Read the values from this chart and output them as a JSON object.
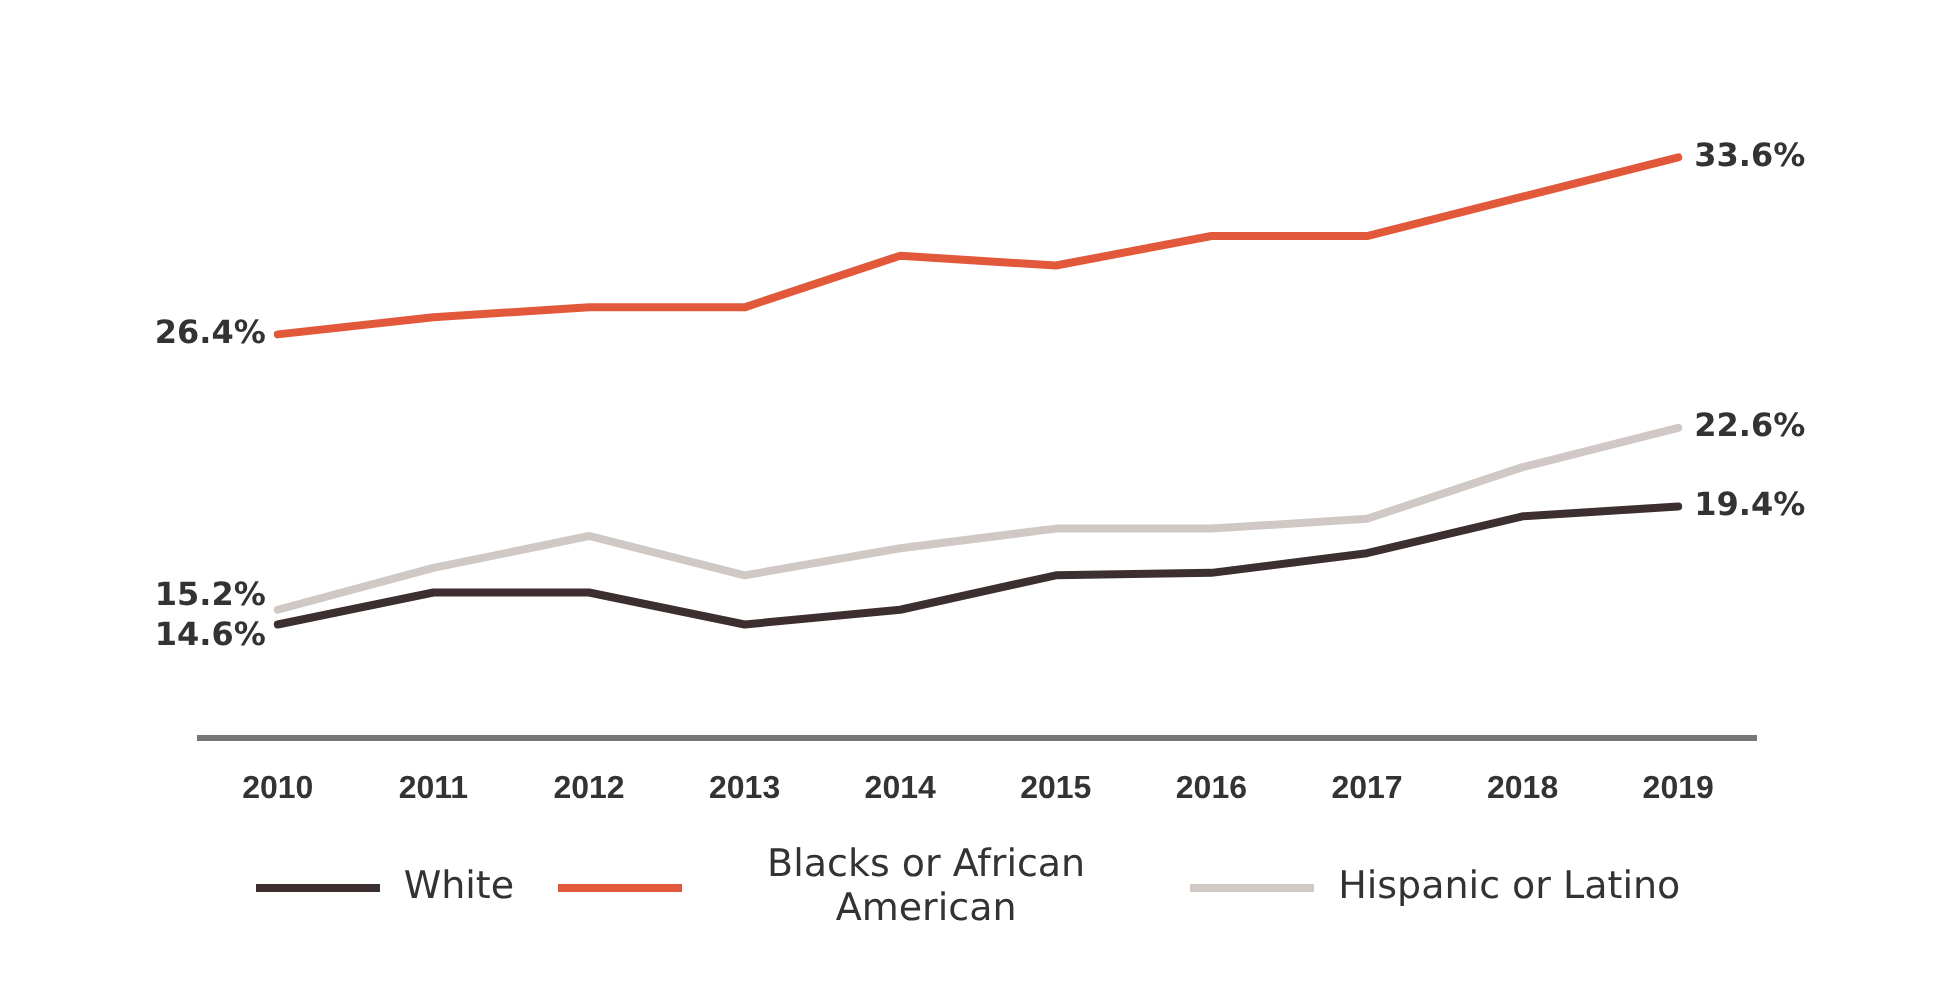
{
  "chart_data": {
    "type": "line",
    "categories": [
      "2010",
      "2011",
      "2012",
      "2013",
      "2014",
      "2015",
      "2016",
      "2017",
      "2018",
      "2019"
    ],
    "series": [
      {
        "name": "White",
        "color": "#3d2f2f",
        "values": [
          14.6,
          15.9,
          15.9,
          14.6,
          15.2,
          16.6,
          16.7,
          17.5,
          19.0,
          19.4
        ],
        "value_labels": [
          "14.6%",
          null,
          null,
          null,
          null,
          null,
          null,
          null,
          null,
          "19.4%"
        ]
      },
      {
        "name": "Blacks or African American",
        "color": "#e2583a",
        "values": [
          26.4,
          27.1,
          27.5,
          27.5,
          29.6,
          29.2,
          30.4,
          30.4,
          32.0,
          33.6
        ],
        "value_labels": [
          "26.4%",
          null,
          null,
          null,
          null,
          null,
          null,
          null,
          null,
          "33.6%"
        ]
      },
      {
        "name": "Hispanic or Latino",
        "color": "#cfc8c4",
        "values": [
          15.2,
          16.9,
          18.2,
          16.6,
          17.7,
          18.5,
          18.5,
          18.9,
          21.0,
          22.6
        ],
        "value_labels": [
          "15.2%",
          null,
          null,
          null,
          null,
          null,
          null,
          null,
          null,
          "22.6%"
        ]
      }
    ],
    "tick_labels": "x",
    "grid": false,
    "legend": "bottom",
    "marker": "none",
    "line_style": "solid"
  }
}
